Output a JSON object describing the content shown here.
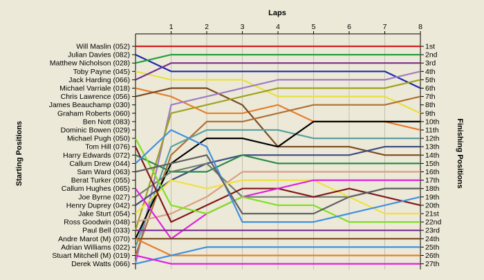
{
  "chart_data": {
    "type": "line",
    "title": "Laps",
    "ylabel_left": "Starting Positions",
    "ylabel_right": "Finishing Positions",
    "laps": [
      "1",
      "2",
      "3",
      "4",
      "5",
      "6",
      "7",
      "8"
    ],
    "starting_labels": [
      "Will Maslin (052)",
      "Julian Davies (082)",
      "Matthew Nicholson (028)",
      "Toby Payne (045)",
      "Jack Harding (066)",
      "Michael Varriale (018)",
      "Chris Lawrence (056)",
      "James Beauchamp (030)",
      "Graham Roberts (060)",
      "Ben Nott (083)",
      "Dominic Bowen (029)",
      "Michael Pugh (050)",
      "Tom Hill (076)",
      "Harry Edwards (072)",
      "Callum Drew (044)",
      "Sam Ward (063)",
      "Berat Turker (055)",
      "Callum Hughes (065)",
      "Joe Byrne (027)",
      "Henry Duprey (042)",
      "Jake Sturt (054)",
      "Ross Goodwin (048)",
      "Paul Bell (033)",
      "Andre Marot  (M) (070)",
      "Adrian Williams (022)",
      "Stuart Mitchell   (M) (019)",
      "Derek Watts (066)"
    ],
    "finishing_labels": [
      "1st",
      "2nd",
      "3rd",
      "4th",
      "5th",
      "6th",
      "7th",
      "8th",
      "9th",
      "10th",
      "11th",
      "12th",
      "13th",
      "14th",
      "15th",
      "16th",
      "17th",
      "18th",
      "19th",
      "20th",
      "21st",
      "22nd",
      "23rd",
      "24th",
      "25th",
      "26th",
      "27th"
    ],
    "series": [
      {
        "color": "#d02020",
        "positions": [
          1,
          1,
          1,
          1,
          1,
          1,
          1,
          1,
          1
        ]
      },
      {
        "color": "#1a2ab0",
        "positions": [
          2,
          4,
          4,
          4,
          4,
          4,
          4,
          4,
          6
        ]
      },
      {
        "color": "#20a040",
        "positions": [
          3,
          2,
          2,
          2,
          2,
          2,
          2,
          2,
          2
        ]
      },
      {
        "color": "#e8e040",
        "positions": [
          4,
          5,
          5,
          5,
          7,
          7,
          7,
          7,
          9
        ]
      },
      {
        "color": "#7b2d8e",
        "positions": [
          5,
          3,
          3,
          3,
          3,
          3,
          3,
          3,
          3
        ]
      },
      {
        "color": "#e87d2a",
        "positions": [
          6,
          7,
          9,
          9,
          8,
          10,
          10,
          10,
          11
        ]
      },
      {
        "color": "#7a4a20",
        "positions": [
          7,
          6,
          6,
          8,
          13,
          13,
          13,
          14,
          14
        ]
      },
      {
        "color": "#9e7cc4",
        "positions": [
          27,
          8,
          7,
          6,
          5,
          5,
          5,
          5,
          4
        ]
      },
      {
        "color": "#a0a020",
        "positions": [
          23,
          9,
          8,
          7,
          6,
          6,
          6,
          6,
          5
        ]
      },
      {
        "color": "#b07030",
        "positions": [
          26,
          14,
          10,
          10,
          9,
          8,
          8,
          8,
          7
        ]
      },
      {
        "color": "#5aa0a0",
        "positions": [
          25,
          13,
          11,
          11,
          11,
          12,
          12,
          12,
          12
        ]
      },
      {
        "color": "#000000",
        "positions": [
          24,
          15,
          12,
          12,
          13,
          10,
          10,
          10,
          10
        ]
      },
      {
        "color": "#3a4a80",
        "positions": [
          20,
          17,
          15,
          14,
          14,
          14,
          14,
          13,
          13
        ]
      },
      {
        "color": "#2a8a4a",
        "positions": [
          14,
          16,
          16,
          14,
          15,
          15,
          15,
          15,
          15
        ]
      },
      {
        "color": "#708070",
        "positions": [
          19,
          16,
          15,
          19,
          19,
          19,
          19,
          18,
          18
        ]
      },
      {
        "color": "#d8a080",
        "positions": [
          22,
          21,
          19,
          16,
          16,
          16,
          16,
          16,
          16
        ]
      },
      {
        "color": "#f0e040",
        "positions": [
          21,
          17,
          18,
          17,
          17,
          17,
          19,
          21,
          21
        ]
      },
      {
        "color": "#801818",
        "positions": [
          13,
          22,
          20,
          18,
          18,
          19,
          18,
          19,
          20
        ]
      },
      {
        "color": "#e020e0",
        "positions": [
          18,
          24,
          21,
          19,
          18,
          17,
          17,
          17,
          17
        ]
      },
      {
        "color": "#80e020",
        "positions": [
          12,
          20,
          21,
          19,
          20,
          20,
          22,
          22,
          22
        ]
      },
      {
        "color": "#4090e0",
        "positions": [
          15,
          11,
          13,
          22,
          22,
          22,
          21,
          20,
          19
        ]
      },
      {
        "color": "#606060",
        "positions": [
          16,
          15,
          14,
          21,
          21,
          21,
          19,
          18,
          18
        ]
      },
      {
        "color": "#7b2d8e",
        "positions": [
          23,
          23,
          23,
          23,
          23,
          23,
          23,
          23,
          23
        ]
      },
      {
        "color": "#7a4a20",
        "positions": [
          24,
          24,
          24,
          24,
          24,
          24,
          24,
          24,
          24
        ]
      },
      {
        "color": "#e87d2a",
        "positions": [
          24,
          26,
          26,
          26,
          26,
          26,
          26,
          26,
          26
        ]
      },
      {
        "color": "#4090e0",
        "positions": [
          27,
          26,
          25,
          25,
          25,
          25,
          25,
          25,
          25
        ]
      },
      {
        "color": "#e020e0",
        "positions": [
          26,
          27,
          27,
          27,
          27,
          27,
          27,
          27,
          27
        ]
      }
    ]
  }
}
